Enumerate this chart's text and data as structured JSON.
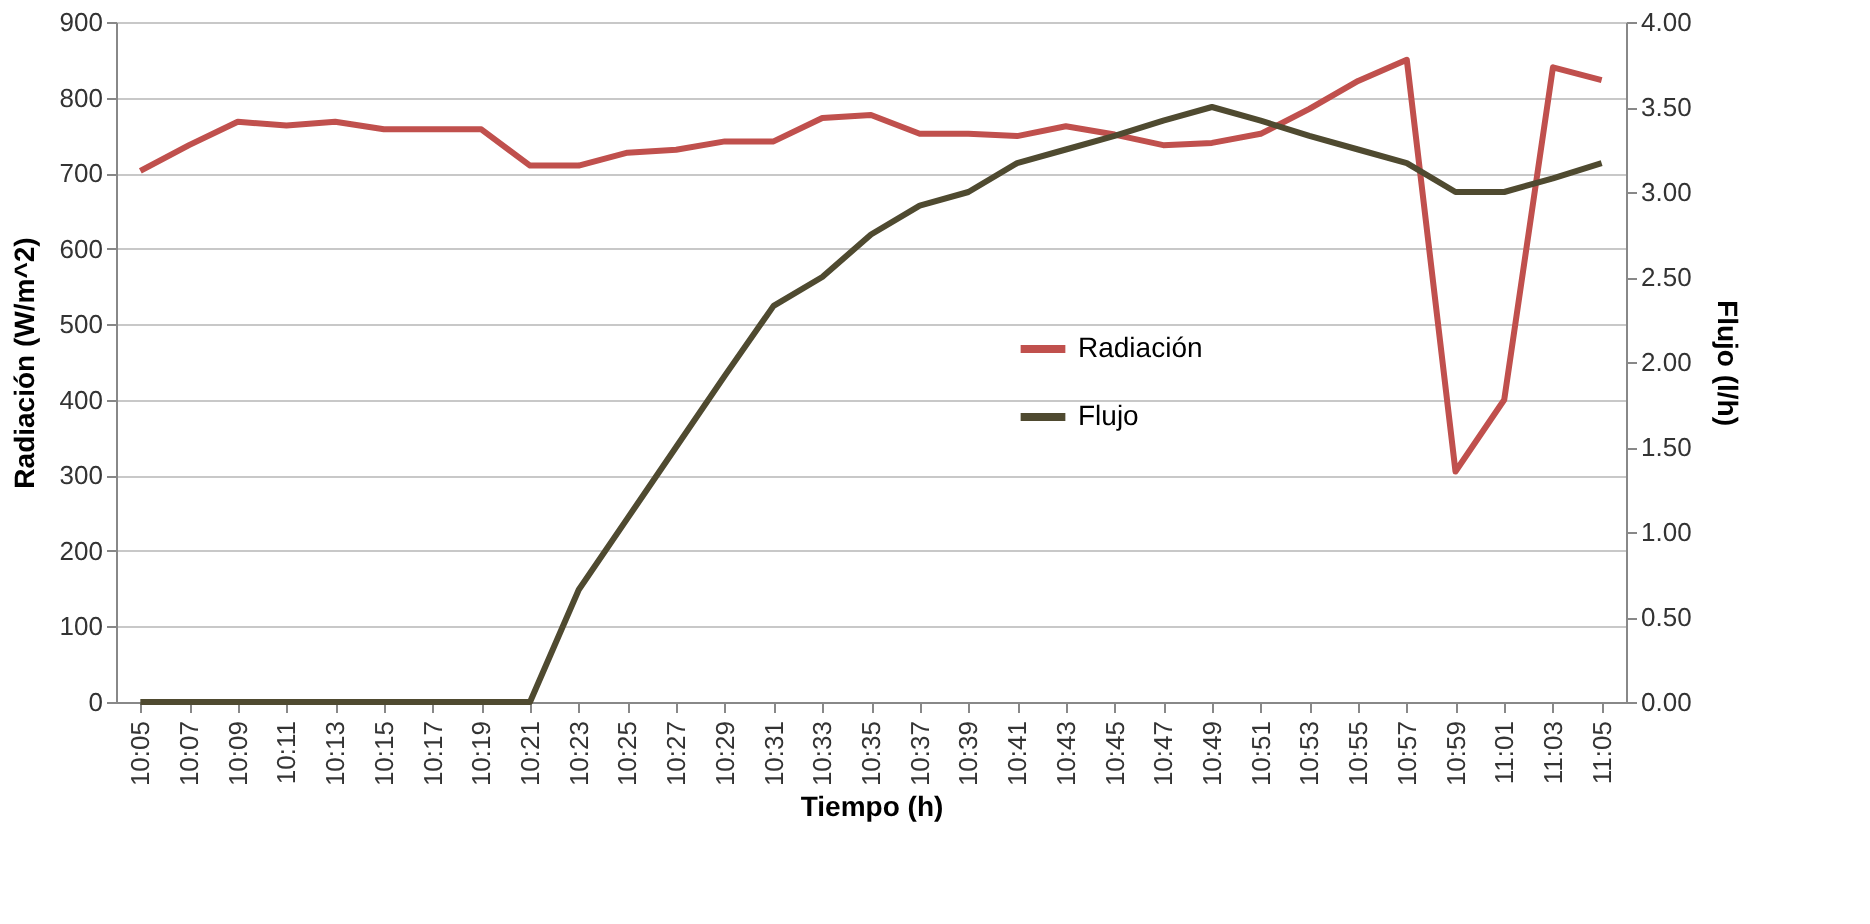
{
  "chart_data": {
    "type": "line",
    "xlabel": "Tiempo (h)",
    "ylabel": "Radiación (W/m^2)",
    "y2label": "Flujo (l/h)",
    "categories": [
      "10:05",
      "10:07",
      "10:09",
      "10:11",
      "10:13",
      "10:15",
      "10:17",
      "10:19",
      "10:21",
      "10:23",
      "10:25",
      "10:27",
      "10:29",
      "10:31",
      "10:33",
      "10:35",
      "10:37",
      "10:39",
      "10:41",
      "10:43",
      "10:45",
      "10:47",
      "10:49",
      "10:51",
      "10:53",
      "10:55",
      "10:57",
      "10:59",
      "11:01",
      "11:03",
      "11:05"
    ],
    "series": [
      {
        "name": "Radiación",
        "color": "#c0504d",
        "values": [
          703,
          737,
          768,
          763,
          768,
          758,
          758,
          758,
          710,
          710,
          727,
          731,
          742,
          742,
          773,
          777,
          752,
          752,
          749,
          762,
          751,
          737,
          740,
          752,
          785,
          822,
          850,
          305,
          400,
          840,
          823
        ]
      },
      {
        "name": "Flujo",
        "color": "#4f4a30",
        "axis": "y2",
        "values": [
          0,
          0,
          0,
          0,
          0,
          0,
          0,
          0,
          0,
          0.66,
          1.08,
          1.5,
          1.92,
          2.33,
          2.5,
          2.75,
          2.92,
          3.0,
          3.17,
          3.25,
          3.33,
          3.42,
          3.5,
          3.42,
          3.33,
          3.25,
          3.17,
          3.0,
          3.0,
          3.08,
          3.17
        ]
      }
    ],
    "ylim": [
      0,
      900
    ],
    "yticks": [
      0,
      100,
      200,
      300,
      400,
      500,
      600,
      700,
      800,
      900
    ],
    "y2lim": [
      0,
      4
    ],
    "y2ticks": [
      {
        "value": 0,
        "label": "0.00"
      },
      {
        "value": 0.5,
        "label": "0.50"
      },
      {
        "value": 1,
        "label": "1.00"
      },
      {
        "value": 1.5,
        "label": "1.50"
      },
      {
        "value": 2,
        "label": "2.00"
      },
      {
        "value": 2.5,
        "label": "2.50"
      },
      {
        "value": 3,
        "label": "3.00"
      },
      {
        "value": 3.5,
        "label": "3.50"
      },
      {
        "value": 4,
        "label": "4.00"
      }
    ],
    "grid": "y",
    "legend": "center",
    "marker": "none",
    "line_style": "solid"
  }
}
